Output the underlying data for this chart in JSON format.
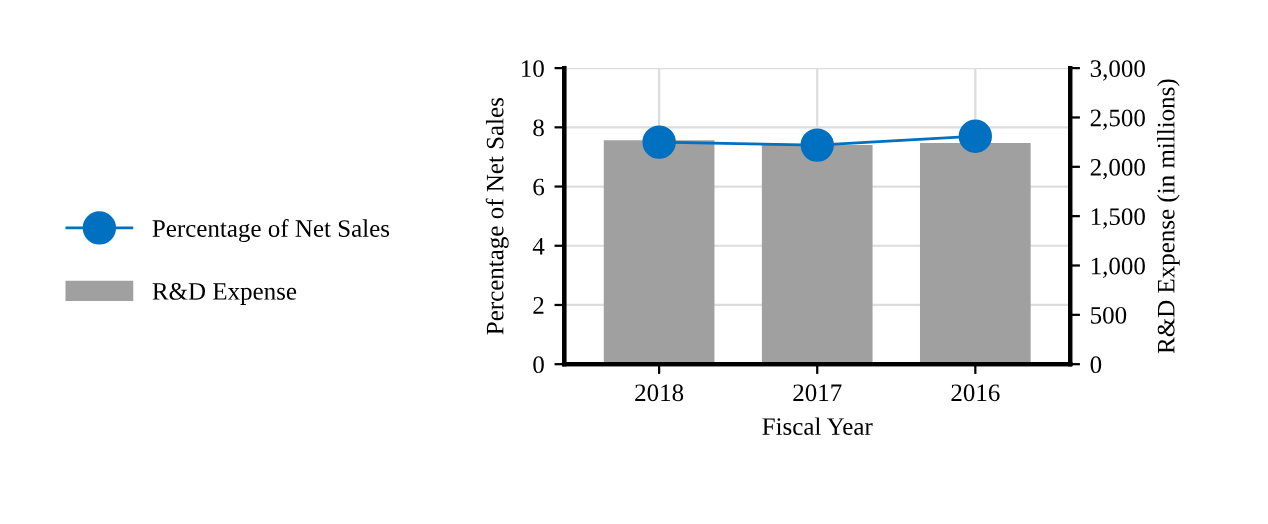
{
  "chart_data": {
    "type": "bar",
    "xlabel": "Fiscal Year",
    "ylabel": "Percentage of Net Sales",
    "y2label": "R&D Expense (in millions)",
    "categories": [
      "2018",
      "2017",
      "2016"
    ],
    "series": [
      {
        "name": "Percentage of Net Sales",
        "type": "line",
        "color": "#0070c0",
        "values": [
          7.5,
          7.4,
          7.7
        ],
        "marker": "circle"
      },
      {
        "name": "R&D Expense",
        "axis": "y2",
        "color": "#a0a0a0",
        "values": [
          2270,
          2220,
          2240
        ]
      }
    ],
    "ylim": [
      0,
      10
    ],
    "yticks": [
      0,
      2,
      4,
      6,
      8,
      10
    ],
    "y2lim": [
      0,
      3000
    ],
    "y2ticks": [
      0,
      {
        "value": 500,
        "label": "500"
      },
      {
        "value": 1000,
        "label": "1,000"
      },
      {
        "value": 1500,
        "label": "1,500"
      },
      {
        "value": 2000,
        "label": "2,000"
      },
      {
        "value": 2500,
        "label": "2,500"
      },
      {
        "value": 3000,
        "label": "3,000"
      }
    ],
    "grid": true,
    "legend": "left"
  }
}
